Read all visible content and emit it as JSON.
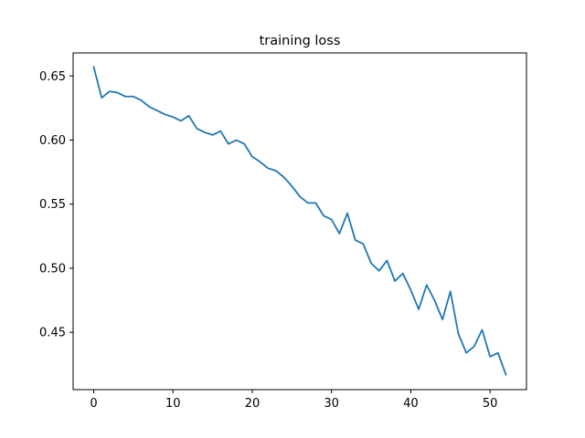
{
  "chart_data": {
    "type": "line",
    "title": "training loss",
    "xlabel": "",
    "ylabel": "",
    "xlim": [
      -2.6,
      54.6
    ],
    "ylim": [
      0.4053,
      0.668
    ],
    "x_ticks": [
      0,
      10,
      20,
      30,
      40,
      50
    ],
    "y_ticks": [
      0.45,
      0.5,
      0.55,
      0.6,
      0.65
    ],
    "x_tick_labels": [
      "0",
      "10",
      "20",
      "30",
      "40",
      "50"
    ],
    "y_tick_labels": [
      "0.45",
      "0.50",
      "0.55",
      "0.60",
      "0.65"
    ],
    "grid": false,
    "line_color": "#1f77b4",
    "series": [
      {
        "x": [
          0,
          1,
          2,
          3,
          4,
          5,
          6,
          7,
          8,
          9,
          10,
          11,
          12,
          13,
          14,
          15,
          16,
          17,
          18,
          19,
          20,
          21,
          22,
          23,
          24,
          25,
          26,
          27,
          28,
          29,
          30,
          31,
          32,
          33,
          34,
          35,
          36,
          37,
          38,
          39,
          40,
          41,
          42,
          43,
          44,
          45,
          46,
          47,
          48,
          49,
          50,
          51,
          52
        ],
        "values": [
          0.657,
          0.633,
          0.638,
          0.637,
          0.634,
          0.634,
          0.631,
          0.626,
          0.623,
          0.62,
          0.618,
          0.615,
          0.619,
          0.609,
          0.606,
          0.604,
          0.607,
          0.597,
          0.6,
          0.597,
          0.587,
          0.583,
          0.578,
          0.576,
          0.571,
          0.564,
          0.556,
          0.551,
          0.551,
          0.541,
          0.538,
          0.527,
          0.543,
          0.522,
          0.519,
          0.504,
          0.498,
          0.506,
          0.49,
          0.496,
          0.483,
          0.468,
          0.487,
          0.475,
          0.46,
          0.482,
          0.449,
          0.434,
          0.439,
          0.452,
          0.431,
          0.434,
          0.417
        ]
      }
    ]
  }
}
